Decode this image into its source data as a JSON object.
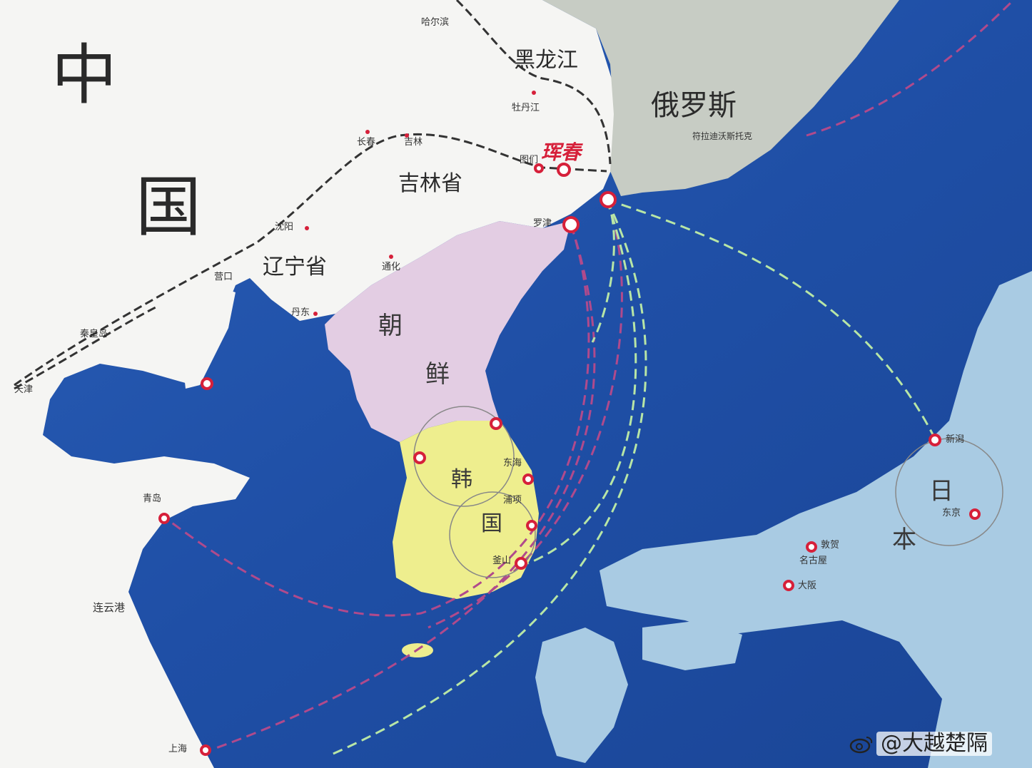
{
  "colors": {
    "sea": "#1e4fa6",
    "sea_dark": "#173f8c",
    "china_land": "#f5f5f3",
    "russia_land": "#c7ccc4",
    "north_korea": "#e3cde3",
    "south_korea": "#eeee8e",
    "japan": "#a9cbe3",
    "route_purple": "#b04a8c",
    "route_green": "#b8e6a6",
    "rail_dark": "#333333",
    "marker_red": "#d6203a"
  },
  "labels": {
    "china_zhong": "中",
    "china_guo": "国",
    "heilongjiang": "黑龙江",
    "russia": "俄罗斯",
    "jilin": "吉林省",
    "liaoning": "辽宁省",
    "chao": "朝",
    "xian": "鲜",
    "han": "韩",
    "guo_korea": "国",
    "ri": "日",
    "ben": "本",
    "hunchun": "珲春"
  },
  "cities": {
    "haerbin": "哈尔滨",
    "mudanjiang": "牡丹江",
    "changchun": "长春",
    "jilin": "吉林",
    "tumen": "图们",
    "shenyang": "沈阳",
    "tonghua": "通化",
    "yingkou": "营口",
    "dandong": "丹东",
    "qinhuangdao": "秦皇岛",
    "tianjin": "天津",
    "qingdao": "青岛",
    "lianyungang": "连云港",
    "shanghai": "上海",
    "luojin": "罗津",
    "vladivostok": "符拉迪沃斯托克",
    "niigata": "新潟",
    "tokyo": "东京",
    "tsuruga": "敦贺",
    "nagoya": "名古屋",
    "osaka": "大阪",
    "pohang": "浦项",
    "busan": "釜山",
    "donghae": "东海"
  },
  "watermark": "@大越楚隔"
}
